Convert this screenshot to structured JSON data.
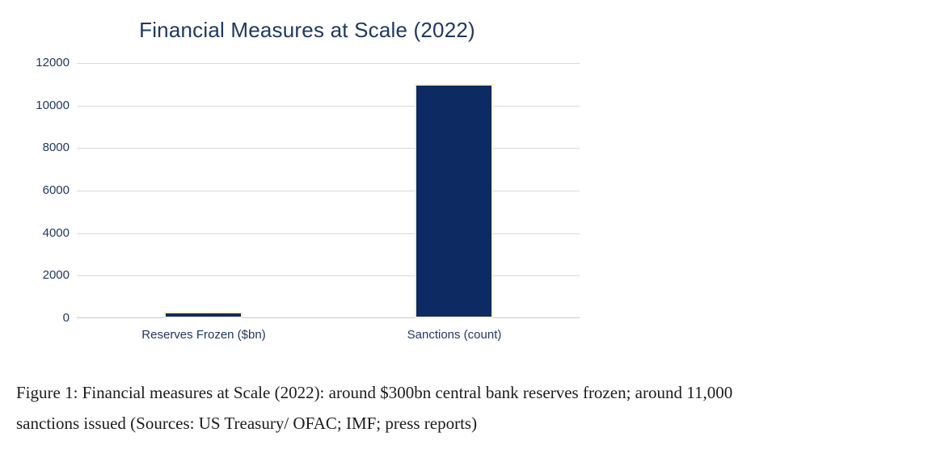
{
  "chart_data": {
    "type": "bar",
    "title": "Financial Measures at Scale (2022)",
    "categories": [
      "Reserves Frozen ($bn)",
      "Sanctions (count)"
    ],
    "values": [
      300,
      11000
    ],
    "xlabel": "",
    "ylabel": "",
    "ylim": [
      0,
      12000
    ],
    "yticks": [
      0,
      2000,
      4000,
      6000,
      8000,
      10000,
      12000
    ],
    "grid": "horizontal-only",
    "legend_position": "none",
    "colors": {
      "bar_fill": "#0e2a62",
      "bar_border": "#f2efcd",
      "title_text": "#1f3864",
      "axis_label_text": "#1f3864",
      "gridline": "#d9d9d9",
      "baseline": "#c8c8c8"
    }
  },
  "figure": {
    "caption": {
      "line1": "Figure 1: Financial measures at Scale (2022): around $300bn central bank reserves frozen; around 11,000",
      "line2": "sanctions issued (Sources: US Treasury/ OFAC; IMF; press reports)"
    }
  }
}
